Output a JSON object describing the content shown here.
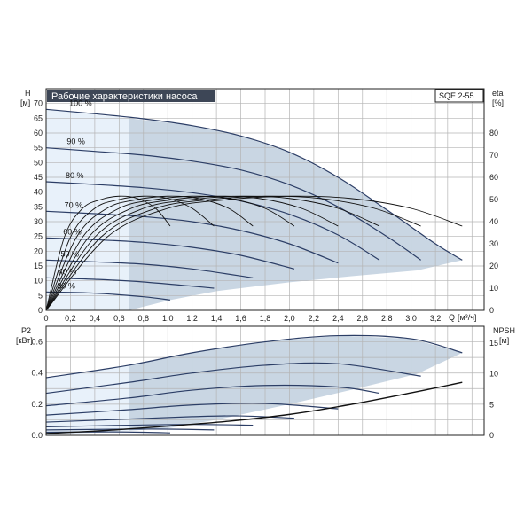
{
  "title": "Рабочие характеристики насоса",
  "model": "SQE 2-55",
  "colors": {
    "title_bg": "#3d4656",
    "area_fill": "#c9d6e3",
    "light_fill": "#e8f1fa",
    "grid": "#b4b4b4",
    "curve": "#2c3e66",
    "eta_curve": "#111111"
  },
  "chart_data": [
    {
      "type": "line",
      "id": "head",
      "ylabel": "H",
      "yunit": "[м]",
      "y2label": "eta",
      "y2unit": "[%]",
      "xlabel": "Q",
      "xunit": "[м³/ч]",
      "xlim": [
        0,
        3.6
      ],
      "ylim": [
        0,
        75
      ],
      "y2lim": [
        0,
        100
      ],
      "xticks": [
        "0",
        "0,2",
        "0,4",
        "0,6",
        "0,8",
        "1,0",
        "1,2",
        "1,4",
        "1,6",
        "1,8",
        "2,0",
        "2,2",
        "2,4",
        "2,6",
        "2,8",
        "3,0",
        "3,2"
      ],
      "yticks": [
        "0",
        "5",
        "10",
        "15",
        "20",
        "25",
        "30",
        "35",
        "40",
        "45",
        "50",
        "55",
        "60",
        "65",
        "70"
      ],
      "y2ticks": [
        "0",
        "10",
        "20",
        "30",
        "40",
        "50",
        "60",
        "70",
        "80"
      ],
      "grid": true,
      "series": [
        {
          "name": "100 %",
          "x": [
            0,
            0.4,
            0.8,
            1.2,
            1.6,
            2.0,
            2.4,
            2.8,
            3.2,
            3.42
          ],
          "y": [
            68,
            66.5,
            64.8,
            62.5,
            59,
            53.5,
            45,
            34,
            22.5,
            17
          ]
        },
        {
          "name": "90 %",
          "x": [
            0,
            0.4,
            0.8,
            1.2,
            1.6,
            2.0,
            2.4,
            2.8,
            3.08
          ],
          "y": [
            55,
            53.8,
            52.5,
            50.5,
            47.5,
            42.5,
            35,
            25,
            17
          ]
        },
        {
          "name": "80 %",
          "x": [
            0,
            0.4,
            0.8,
            1.2,
            1.6,
            2.0,
            2.4,
            2.74
          ],
          "y": [
            43.5,
            42.6,
            41.5,
            39.8,
            37,
            32.5,
            25.5,
            17
          ]
        },
        {
          "name": "70 %",
          "x": [
            0,
            0.4,
            0.8,
            1.2,
            1.6,
            2.0,
            2.4
          ],
          "y": [
            33.5,
            32.7,
            31.7,
            30,
            27,
            22.5,
            16
          ]
        },
        {
          "name": "60 %",
          "x": [
            0,
            0.4,
            0.8,
            1.2,
            1.6,
            2.04
          ],
          "y": [
            24.5,
            23.9,
            23,
            21.3,
            18.6,
            14
          ]
        },
        {
          "name": "50 %",
          "x": [
            0,
            0.4,
            0.8,
            1.2,
            1.7
          ],
          "y": [
            17,
            16.4,
            15.6,
            14,
            11
          ]
        },
        {
          "name": "40 %",
          "x": [
            0,
            0.4,
            0.8,
            1.38
          ],
          "y": [
            11,
            10.5,
            9.6,
            7.5
          ]
        },
        {
          "name": "30 %",
          "x": [
            0,
            0.4,
            0.8,
            1.02
          ],
          "y": [
            6.2,
            5.8,
            4.6,
            3.5
          ]
        }
      ],
      "area_polygon": [
        [
          0.68,
          0
        ],
        [
          0.68,
          65
        ],
        [
          1.2,
          62.5
        ],
        [
          1.6,
          59
        ],
        [
          2.0,
          53.5
        ],
        [
          2.4,
          45
        ],
        [
          2.8,
          34
        ],
        [
          3.2,
          22.5
        ],
        [
          3.42,
          17
        ],
        [
          3.05,
          13.5
        ],
        [
          2.5,
          11.5
        ],
        [
          2.0,
          9.5
        ],
        [
          1.4,
          6.5
        ],
        [
          1.02,
          3.5
        ],
        [
          0.68,
          0
        ]
      ],
      "light_polygon": [
        [
          0,
          68
        ],
        [
          0.68,
          65
        ],
        [
          0.68,
          0
        ],
        [
          0,
          0
        ]
      ],
      "eta_series": [
        {
          "name": "100 %",
          "x": [
            0,
            0.5,
            1.0,
            1.5,
            2.0,
            2.5,
            3.0,
            3.42
          ],
          "y": [
            0,
            33,
            46,
            50,
            51.5,
            50.5,
            46,
            38
          ]
        },
        {
          "name": "90 %",
          "x": [
            0,
            0.45,
            0.9,
            1.35,
            1.8,
            2.25,
            2.7,
            3.08
          ],
          "y": [
            0,
            33,
            46,
            50,
            51.5,
            50.5,
            46,
            38
          ]
        },
        {
          "name": "80 %",
          "x": [
            0,
            0.4,
            0.8,
            1.2,
            1.6,
            2.0,
            2.4,
            2.74
          ],
          "y": [
            0,
            33,
            46,
            50,
            51.5,
            50.5,
            46,
            38
          ]
        },
        {
          "name": "70 %",
          "x": [
            0,
            0.35,
            0.7,
            1.05,
            1.4,
            1.75,
            2.1,
            2.4
          ],
          "y": [
            0,
            33,
            46,
            50,
            51.5,
            50.5,
            46,
            38
          ]
        },
        {
          "name": "60 %",
          "x": [
            0,
            0.3,
            0.6,
            0.9,
            1.2,
            1.5,
            1.8,
            2.04
          ],
          "y": [
            0,
            33,
            46,
            50,
            51.5,
            50.5,
            46,
            38
          ]
        },
        {
          "name": "50 %",
          "x": [
            0,
            0.25,
            0.5,
            0.75,
            1.0,
            1.25,
            1.5,
            1.7
          ],
          "y": [
            0,
            33,
            46,
            50,
            51.5,
            50.5,
            46,
            38
          ]
        },
        {
          "name": "40 %",
          "x": [
            0,
            0.2,
            0.4,
            0.6,
            0.8,
            1.0,
            1.2,
            1.38
          ],
          "y": [
            0,
            33,
            46,
            50,
            51.5,
            50.5,
            46,
            38
          ]
        },
        {
          "name": "30 %",
          "x": [
            0,
            0.15,
            0.3,
            0.45,
            0.6,
            0.75,
            0.9,
            1.02
          ],
          "y": [
            0,
            33,
            46,
            50,
            51.5,
            50.5,
            46,
            38
          ]
        }
      ]
    },
    {
      "type": "line",
      "id": "power",
      "ylabel": "P2",
      "yunit": "[кВт]",
      "y2label": "NPSH",
      "y2unit": "[м]",
      "xlim": [
        0,
        3.6
      ],
      "ylim": [
        0,
        0.7
      ],
      "y2lim": [
        0,
        17.7
      ],
      "yticks": [
        "0.0",
        "0.2",
        "0.4",
        "0.6"
      ],
      "y2ticks": [
        "0",
        "5",
        "10",
        "15"
      ],
      "grid": true,
      "series": [
        {
          "name": "100 %",
          "x": [
            0,
            0.68,
            1.2,
            1.8,
            2.4,
            3.0,
            3.42
          ],
          "y": [
            0.37,
            0.45,
            0.53,
            0.6,
            0.64,
            0.62,
            0.53
          ]
        },
        {
          "name": "90 %",
          "x": [
            0,
            0.68,
            1.2,
            1.8,
            2.4,
            3.08
          ],
          "y": [
            0.27,
            0.34,
            0.4,
            0.45,
            0.46,
            0.38
          ]
        },
        {
          "name": "80 %",
          "x": [
            0,
            0.68,
            1.2,
            1.8,
            2.4,
            2.74
          ],
          "y": [
            0.19,
            0.24,
            0.29,
            0.32,
            0.31,
            0.27
          ]
        },
        {
          "name": "70 %",
          "x": [
            0,
            0.68,
            1.2,
            1.8,
            2.4
          ],
          "y": [
            0.13,
            0.165,
            0.195,
            0.205,
            0.17
          ]
        },
        {
          "name": "60 %",
          "x": [
            0,
            0.68,
            1.2,
            1.6,
            2.04
          ],
          "y": [
            0.085,
            0.105,
            0.12,
            0.125,
            0.11
          ]
        },
        {
          "name": "50 %",
          "x": [
            0,
            0.68,
            1.2,
            1.7
          ],
          "y": [
            0.055,
            0.065,
            0.07,
            0.065
          ]
        },
        {
          "name": "40 %",
          "x": [
            0,
            0.68,
            1.0,
            1.38
          ],
          "y": [
            0.035,
            0.04,
            0.04,
            0.035
          ]
        },
        {
          "name": "30 %",
          "x": [
            0,
            0.5,
            0.8,
            1.02
          ],
          "y": [
            0.02,
            0.022,
            0.02,
            0.016
          ]
        }
      ],
      "area_polygon": [
        [
          0.68,
          0.45
        ],
        [
          1.2,
          0.53
        ],
        [
          1.8,
          0.6
        ],
        [
          2.4,
          0.64
        ],
        [
          3.0,
          0.62
        ],
        [
          3.42,
          0.53
        ],
        [
          3.05,
          0.395
        ],
        [
          2.5,
          0.29
        ],
        [
          2.0,
          0.2
        ],
        [
          1.4,
          0.1
        ],
        [
          1.0,
          0.045
        ],
        [
          0.68,
          0.03
        ]
      ],
      "light_polygon": [
        [
          0,
          0.37
        ],
        [
          0.68,
          0.45
        ],
        [
          0.68,
          0.03
        ],
        [
          0,
          0
        ]
      ],
      "npsh_series": [
        {
          "name": "NPSH",
          "x": [
            0,
            0.5,
            1.0,
            1.5,
            2.0,
            2.5,
            3.0,
            3.42
          ],
          "y": [
            0.3,
            0.8,
            1.5,
            2.3,
            3.4,
            5.0,
            6.9,
            8.6
          ]
        }
      ]
    }
  ]
}
